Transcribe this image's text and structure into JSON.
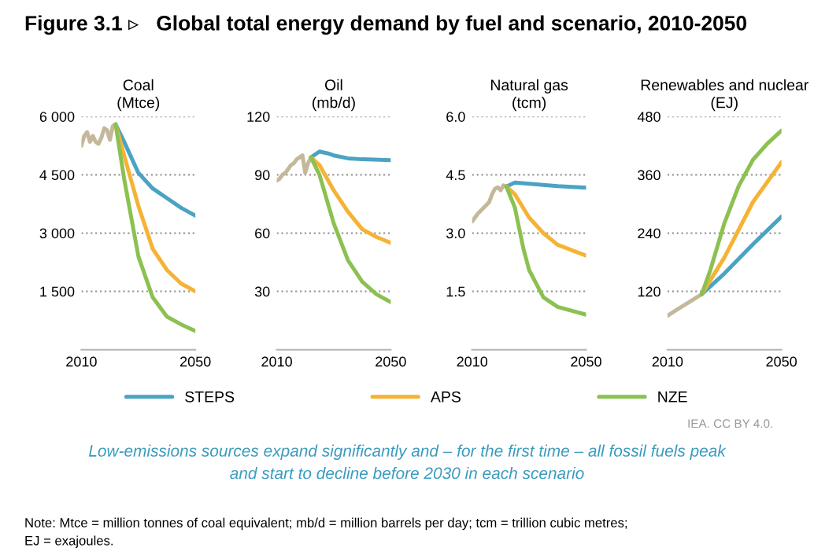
{
  "chart_data": [
    {
      "type": "line",
      "title": "Coal",
      "subtitle": "(Mtce)",
      "xlim": [
        2010,
        2050
      ],
      "xticks": [
        2010,
        2050
      ],
      "ylim": [
        0,
        6000
      ],
      "yticks": [
        {
          "value": 1500,
          "label": "1 500"
        },
        {
          "value": 3000,
          "label": "3 000"
        },
        {
          "value": 4500,
          "label": "4 500"
        },
        {
          "value": 6000,
          "label": "6 000"
        }
      ],
      "grid": "y",
      "legend": "bottom",
      "series": [
        {
          "color": "#c4b89a",
          "x": [
            2010,
            2011,
            2012,
            2013,
            2014,
            2015,
            2016,
            2017,
            2018,
            2019,
            2020,
            2021,
            2022
          ],
          "values": [
            5250,
            5500,
            5600,
            5350,
            5500,
            5350,
            5300,
            5450,
            5700,
            5650,
            5400,
            5750,
            5800
          ]
        },
        {
          "name": "STEPS",
          "color": "#4ba3c3",
          "x": [
            2022,
            2025,
            2030,
            2035,
            2040,
            2045,
            2050
          ],
          "values": [
            5800,
            5350,
            4550,
            4150,
            3900,
            3650,
            3450
          ]
        },
        {
          "name": "APS",
          "color": "#f5b335",
          "x": [
            2022,
            2025,
            2030,
            2035,
            2040,
            2045,
            2050
          ],
          "values": [
            5800,
            5000,
            3700,
            2600,
            2050,
            1700,
            1500
          ]
        },
        {
          "name": "NZE",
          "color": "#8cc152",
          "x": [
            2022,
            2025,
            2030,
            2035,
            2040,
            2045,
            2050
          ],
          "values": [
            5800,
            4400,
            2400,
            1350,
            850,
            650,
            480
          ]
        }
      ]
    },
    {
      "type": "line",
      "title": "Oil",
      "subtitle": "(mb/d)",
      "xlim": [
        2010,
        2050
      ],
      "xticks": [
        2010,
        2050
      ],
      "ylim": [
        0,
        120
      ],
      "yticks": [
        30,
        60,
        90,
        120
      ],
      "grid": "y",
      "series": [
        {
          "color": "#c4b89a",
          "x": [
            2010,
            2011,
            2012,
            2013,
            2014,
            2015,
            2016,
            2017,
            2018,
            2019,
            2020,
            2021,
            2022
          ],
          "values": [
            87,
            88,
            90,
            91,
            93,
            95,
            96,
            98,
            99,
            100,
            91,
            96,
            99
          ]
        },
        {
          "name": "STEPS",
          "color": "#4ba3c3",
          "x": [
            2022,
            2025,
            2028,
            2030,
            2035,
            2040,
            2050
          ],
          "values": [
            99,
            102,
            101,
            100,
            98.5,
            98,
            97.5
          ]
        },
        {
          "name": "APS",
          "color": "#f5b335",
          "x": [
            2022,
            2025,
            2030,
            2035,
            2040,
            2045,
            2050
          ],
          "values": [
            99,
            95,
            82,
            71,
            62,
            58,
            55
          ]
        },
        {
          "name": "NZE",
          "color": "#8cc152",
          "x": [
            2022,
            2025,
            2030,
            2035,
            2040,
            2045,
            2050
          ],
          "values": [
            99,
            90,
            65,
            46,
            35,
            28.5,
            24.5
          ]
        }
      ]
    },
    {
      "type": "line",
      "title": "Natural gas",
      "subtitle": "(tcm)",
      "xlim": [
        2010,
        2050
      ],
      "xticks": [
        2010,
        2050
      ],
      "ylim": [
        0,
        6
      ],
      "yticks": [
        {
          "value": 1.5,
          "label": "1.5"
        },
        {
          "value": 3,
          "label": "3.0"
        },
        {
          "value": 4.5,
          "label": "4.5"
        },
        {
          "value": 6,
          "label": "6.0"
        }
      ],
      "grid": "y",
      "series": [
        {
          "color": "#c4b89a",
          "x": [
            2010,
            2012,
            2014,
            2016,
            2017,
            2018,
            2019,
            2020,
            2021,
            2022
          ],
          "values": [
            3.3,
            3.5,
            3.65,
            3.8,
            4.0,
            4.14,
            4.18,
            4.1,
            4.23,
            4.2
          ]
        },
        {
          "name": "STEPS",
          "color": "#4ba3c3",
          "x": [
            2022,
            2025,
            2030,
            2040,
            2050
          ],
          "values": [
            4.2,
            4.3,
            4.27,
            4.21,
            4.17
          ]
        },
        {
          "name": "APS",
          "color": "#f5b335",
          "x": [
            2022,
            2025,
            2030,
            2035,
            2040,
            2050
          ],
          "values": [
            4.2,
            4.0,
            3.4,
            3.0,
            2.7,
            2.42
          ]
        },
        {
          "name": "NZE",
          "color": "#8cc152",
          "x": [
            2022,
            2025,
            2028,
            2030,
            2035,
            2040,
            2050
          ],
          "values": [
            4.2,
            3.66,
            2.6,
            2.05,
            1.35,
            1.1,
            0.9
          ]
        }
      ]
    },
    {
      "type": "line",
      "title": "Renewables and nuclear",
      "subtitle": "(EJ)",
      "xlim": [
        2010,
        2050
      ],
      "xticks": [
        2010,
        2050
      ],
      "ylim": [
        0,
        480
      ],
      "yticks": [
        120,
        240,
        360,
        480
      ],
      "grid": "y",
      "series": [
        {
          "color": "#c4b89a",
          "x": [
            2010,
            2013,
            2016,
            2019,
            2022
          ],
          "values": [
            70,
            81,
            92,
            103,
            114
          ]
        },
        {
          "name": "STEPS",
          "color": "#4ba3c3",
          "x": [
            2022,
            2030,
            2040,
            2050
          ],
          "values": [
            114,
            157,
            217,
            274
          ]
        },
        {
          "name": "APS",
          "color": "#f5b335",
          "x": [
            2022,
            2030,
            2040,
            2050
          ],
          "values": [
            114,
            190,
            304,
            386
          ]
        },
        {
          "name": "NZE",
          "color": "#8cc152",
          "x": [
            2022,
            2025,
            2030,
            2035,
            2040,
            2045,
            2050
          ],
          "values": [
            114,
            163,
            261,
            337,
            391,
            424,
            451
          ]
        }
      ]
    },
    {
      "type": "other",
      "title": "Figure 3.1 ▹   Global total energy demand by fuel and scenario, 2010-2050",
      "annotations": [
        "IEA. CC BY 4.0.",
        "Low-emissions sources expand significantly and – for the first time – all fossil fuels peak\nand start to decline before 2030 in each scenario",
        "Note: Mtce = million tonnes of coal equivalent; mb/d = million barrels per day; tcm = trillion cubic metres;\nEJ = exajoules."
      ]
    }
  ]
}
